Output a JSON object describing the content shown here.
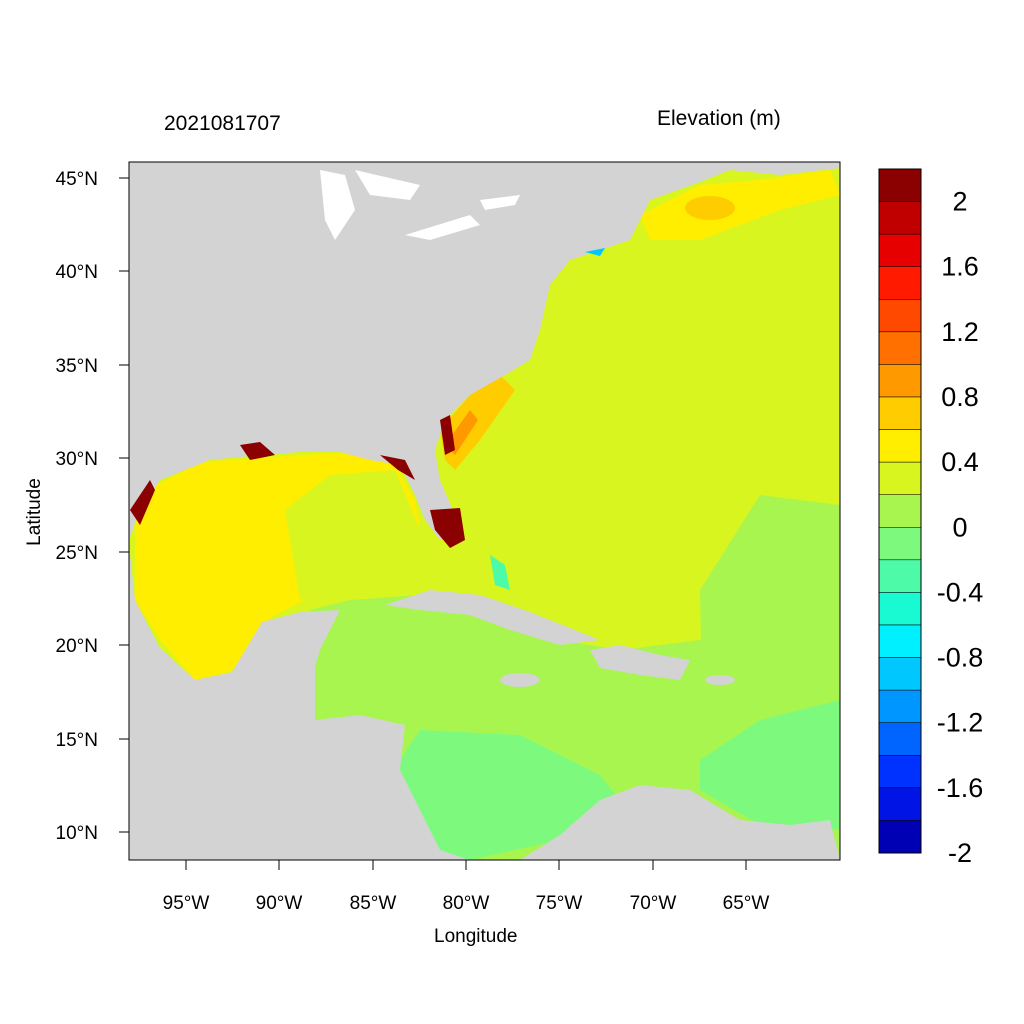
{
  "titles": {
    "date": "2021081707",
    "variable": "Elevation (m)"
  },
  "axes": {
    "xlabel": "Longitude",
    "ylabel": "Latitude",
    "x_ticks": [
      "95°W",
      "90°W",
      "85°W",
      "80°W",
      "75°W",
      "70°W",
      "65°W"
    ],
    "y_ticks": [
      "45°N",
      "40°N",
      "35°N",
      "30°N",
      "25°N",
      "20°N",
      "15°N",
      "10°N"
    ]
  },
  "colorbar": {
    "colors": [
      "#8b0000",
      "#c00000",
      "#e60000",
      "#ff1a00",
      "#ff4800",
      "#ff7000",
      "#ff9900",
      "#ffcc00",
      "#ffee00",
      "#d8f520",
      "#a8f550",
      "#7dfa7d",
      "#4dfaa8",
      "#1afad2",
      "#00f0ff",
      "#00c8ff",
      "#0096ff",
      "#0064ff",
      "#0032ff",
      "#0014e6",
      "#0000b4"
    ],
    "labels": [
      "2",
      "1.6",
      "1.2",
      "0.8",
      "0.4",
      "0",
      "-0.4",
      "-0.8",
      "-1.2",
      "-1.6",
      "-2"
    ]
  },
  "map_colors": {
    "land": "#d3d3d3",
    "water_0_4": "#d8f520",
    "water_0_2": "#a8f550",
    "water_0": "#7dfa7d",
    "gulf": "#ffee00",
    "surge_high": "#8b0000",
    "surge_mid": "#ff9900",
    "negative": "#00c8ff"
  }
}
